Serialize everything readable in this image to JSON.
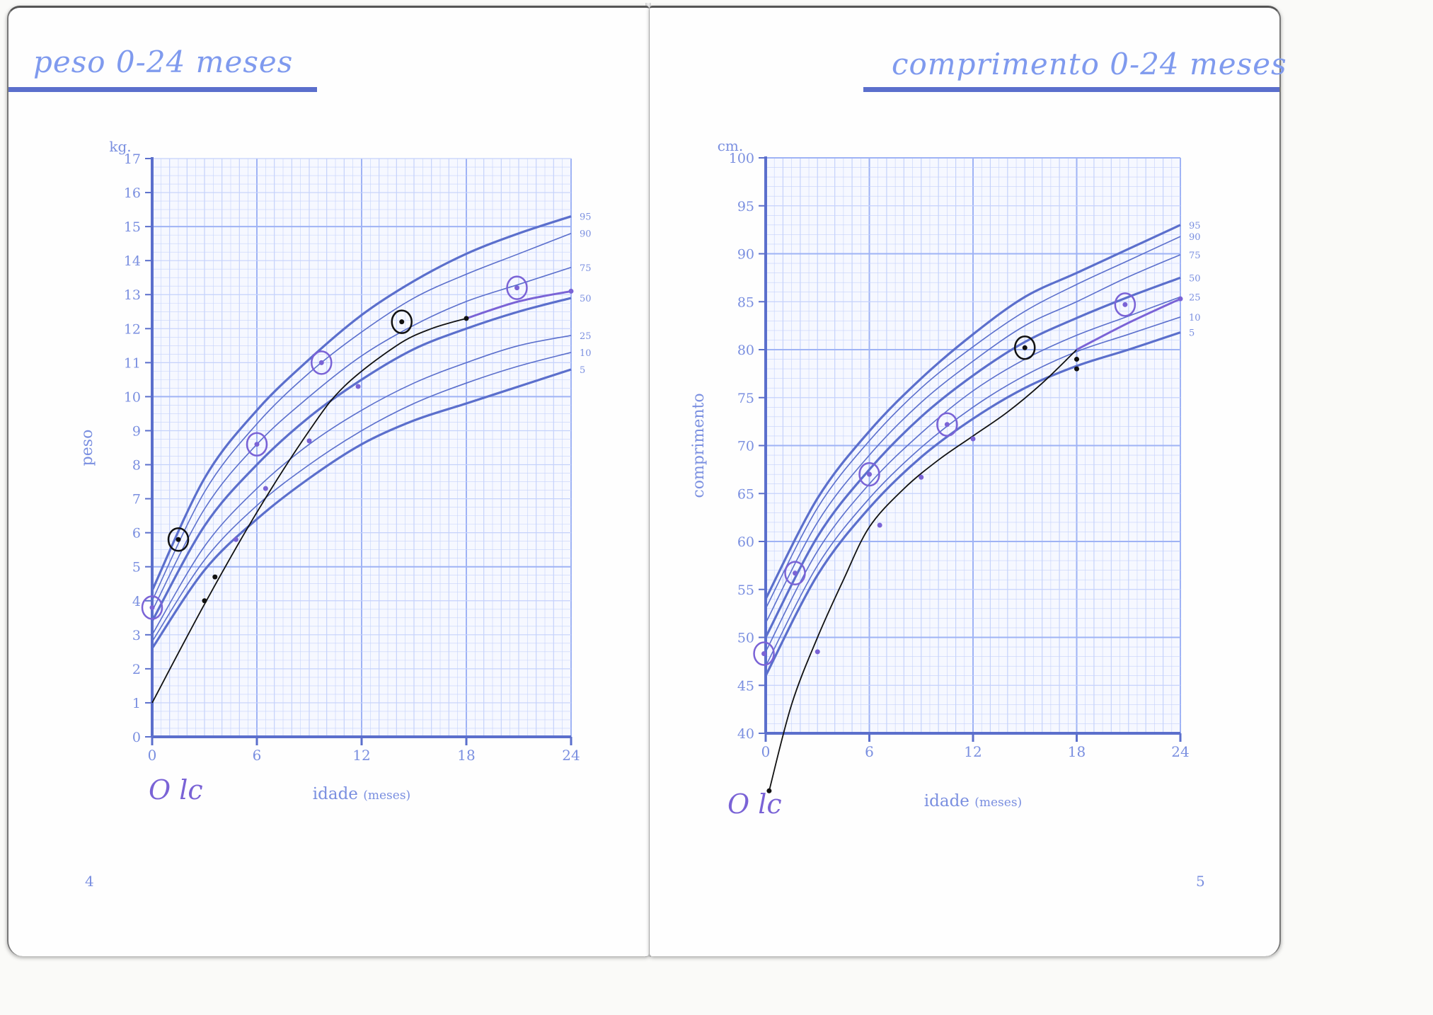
{
  "left_page": {
    "title": "peso 0-24 meses",
    "page_number": "4",
    "handwritten_note": "O lc"
  },
  "right_page": {
    "title": "comprimento 0-24 meses",
    "page_number": "5",
    "handwritten_note": "O lc"
  },
  "colors": {
    "grid_light": "#c5d2fb",
    "grid_major": "#9fb3f5",
    "axis": "#5b6fcc",
    "curve": "#5b6fcc",
    "label": "#7a8fe0",
    "pencil": "#111111",
    "marker": "#7a63d6"
  },
  "chart_data": [
    {
      "id": "weight",
      "type": "line",
      "title": "peso 0-24 meses",
      "xlabel": "idade",
      "xlabel_unit": "(meses)",
      "ylabel": "peso",
      "yunit": "kg.",
      "xlim": [
        0,
        24
      ],
      "ylim": [
        0,
        17
      ],
      "x_ticks": [
        0,
        6,
        12,
        18,
        24
      ],
      "y_ticks": [
        0,
        1,
        2,
        3,
        4,
        5,
        6,
        7,
        8,
        9,
        10,
        11,
        12,
        13,
        14,
        15,
        16,
        17
      ],
      "grid": true,
      "x": [
        0,
        3,
        6,
        9,
        12,
        15,
        18,
        21,
        24
      ],
      "series": [
        {
          "name": "95",
          "thick": true,
          "values": [
            4.3,
            7.6,
            9.6,
            11.1,
            12.4,
            13.4,
            14.2,
            14.8,
            15.3
          ]
        },
        {
          "name": "90",
          "thick": false,
          "values": [
            4.0,
            7.2,
            9.2,
            10.7,
            11.9,
            12.9,
            13.6,
            14.2,
            14.8
          ]
        },
        {
          "name": "75",
          "thick": false,
          "values": [
            3.7,
            6.7,
            8.6,
            10.0,
            11.2,
            12.1,
            12.8,
            13.3,
            13.8
          ]
        },
        {
          "name": "50",
          "thick": true,
          "values": [
            3.4,
            6.2,
            8.0,
            9.4,
            10.5,
            11.4,
            12.0,
            12.5,
            12.9
          ]
        },
        {
          "name": "25",
          "thick": false,
          "values": [
            3.0,
            5.6,
            7.3,
            8.6,
            9.6,
            10.4,
            11.0,
            11.5,
            11.8
          ]
        },
        {
          "name": "10",
          "thick": false,
          "values": [
            2.8,
            5.2,
            6.8,
            8.0,
            9.0,
            9.8,
            10.4,
            10.9,
            11.3
          ]
        },
        {
          "name": "5",
          "thick": true,
          "values": [
            2.6,
            4.9,
            6.4,
            7.6,
            8.6,
            9.3,
            9.8,
            10.3,
            10.8
          ]
        }
      ],
      "pencil_line": {
        "x": [
          0,
          3,
          6,
          9,
          11,
          14,
          16,
          18
        ],
        "values": [
          1.0,
          3.9,
          6.6,
          9.0,
          10.3,
          11.5,
          12.0,
          12.3
        ]
      },
      "marker_line": {
        "x": [
          18,
          21,
          24
        ],
        "values": [
          12.3,
          12.8,
          13.1
        ]
      },
      "points": [
        {
          "x": 0,
          "y": 3.8,
          "circled": true,
          "ink": "marker"
        },
        {
          "x": 1.5,
          "y": 5.8,
          "circled": true,
          "ink": "pencil"
        },
        {
          "x": 3,
          "y": 4.0,
          "circled": false,
          "ink": "pencil"
        },
        {
          "x": 3.6,
          "y": 4.7,
          "circled": false,
          "ink": "pencil"
        },
        {
          "x": 4.8,
          "y": 5.8,
          "circled": false,
          "ink": "marker"
        },
        {
          "x": 6,
          "y": 8.6,
          "circled": true,
          "ink": "marker"
        },
        {
          "x": 6.5,
          "y": 7.3,
          "circled": false,
          "ink": "marker"
        },
        {
          "x": 9,
          "y": 8.7,
          "circled": false,
          "ink": "marker"
        },
        {
          "x": 9.7,
          "y": 11.0,
          "circled": true,
          "ink": "marker"
        },
        {
          "x": 11.8,
          "y": 10.3,
          "circled": false,
          "ink": "marker"
        },
        {
          "x": 14.3,
          "y": 12.2,
          "circled": true,
          "ink": "pencil"
        },
        {
          "x": 18,
          "y": 12.3,
          "circled": false,
          "ink": "pencil"
        },
        {
          "x": 20.9,
          "y": 13.2,
          "circled": true,
          "ink": "marker"
        },
        {
          "x": 24,
          "y": 13.1,
          "circled": false,
          "ink": "marker"
        }
      ]
    },
    {
      "id": "length",
      "type": "line",
      "title": "comprimento 0-24 meses",
      "xlabel": "idade",
      "xlabel_unit": "(meses)",
      "ylabel": "comprimento",
      "yunit": "cm.",
      "xlim": [
        0,
        24
      ],
      "ylim": [
        40,
        100
      ],
      "x_ticks": [
        0,
        6,
        12,
        18,
        24
      ],
      "y_ticks": [
        40,
        45,
        50,
        55,
        60,
        65,
        70,
        75,
        80,
        85,
        90,
        95,
        100
      ],
      "grid": true,
      "x": [
        0,
        3,
        6,
        9,
        12,
        15,
        18,
        21,
        24
      ],
      "series": [
        {
          "name": "95",
          "thick": true,
          "values": [
            54.0,
            64.5,
            71.5,
            77.0,
            81.6,
            85.5,
            88.0,
            90.5,
            93.0
          ]
        },
        {
          "name": "90",
          "thick": false,
          "values": [
            53.0,
            63.5,
            70.5,
            76.0,
            80.3,
            84.0,
            86.8,
            89.3,
            91.8
          ]
        },
        {
          "name": "75",
          "thick": false,
          "values": [
            51.5,
            62.0,
            69.0,
            74.5,
            78.8,
            82.5,
            85.0,
            87.6,
            89.9
          ]
        },
        {
          "name": "50",
          "thick": true,
          "values": [
            50.0,
            60.5,
            67.5,
            73.0,
            77.3,
            80.8,
            83.3,
            85.5,
            87.5
          ]
        },
        {
          "name": "25",
          "thick": false,
          "values": [
            48.5,
            59.0,
            66.0,
            71.3,
            75.7,
            79.0,
            81.5,
            83.5,
            85.5
          ]
        },
        {
          "name": "10",
          "thick": false,
          "values": [
            47.0,
            57.5,
            64.5,
            69.8,
            74.0,
            77.3,
            79.8,
            81.6,
            83.4
          ]
        },
        {
          "name": "5",
          "thick": true,
          "values": [
            46.0,
            56.5,
            63.5,
            68.8,
            72.8,
            76.0,
            78.3,
            80.0,
            81.8
          ]
        }
      ],
      "pencil_line": {
        "x": [
          0.2,
          1.5,
          3,
          4.5,
          6,
          8,
          10,
          12,
          14,
          16,
          18
        ],
        "values": [
          34.0,
          43.0,
          50.0,
          56.0,
          61.5,
          65.5,
          68.5,
          71.0,
          73.5,
          76.5,
          80.0
        ]
      },
      "marker_line": {
        "x": [
          18,
          21,
          24
        ],
        "values": [
          80.0,
          82.8,
          85.3
        ]
      },
      "points": [
        {
          "x": 0.2,
          "y": 34.0,
          "circled": false,
          "ink": "pencil"
        },
        {
          "x": -0.1,
          "y": 48.3,
          "circled": true,
          "ink": "marker"
        },
        {
          "x": 1.7,
          "y": 56.7,
          "circled": true,
          "ink": "marker"
        },
        {
          "x": 3,
          "y": 48.5,
          "circled": false,
          "ink": "marker"
        },
        {
          "x": 6,
          "y": 67.0,
          "circled": true,
          "ink": "marker"
        },
        {
          "x": 6.6,
          "y": 61.7,
          "circled": false,
          "ink": "marker"
        },
        {
          "x": 9,
          "y": 66.7,
          "circled": false,
          "ink": "marker"
        },
        {
          "x": 10.5,
          "y": 72.2,
          "circled": true,
          "ink": "marker"
        },
        {
          "x": 12,
          "y": 70.7,
          "circled": false,
          "ink": "marker"
        },
        {
          "x": 15,
          "y": 80.2,
          "circled": true,
          "ink": "pencil"
        },
        {
          "x": 18,
          "y": 78.0,
          "circled": false,
          "ink": "pencil"
        },
        {
          "x": 18,
          "y": 79.0,
          "circled": false,
          "ink": "pencil"
        },
        {
          "x": 20.8,
          "y": 84.7,
          "circled": true,
          "ink": "marker"
        },
        {
          "x": 24,
          "y": 85.3,
          "circled": false,
          "ink": "marker"
        }
      ]
    }
  ]
}
